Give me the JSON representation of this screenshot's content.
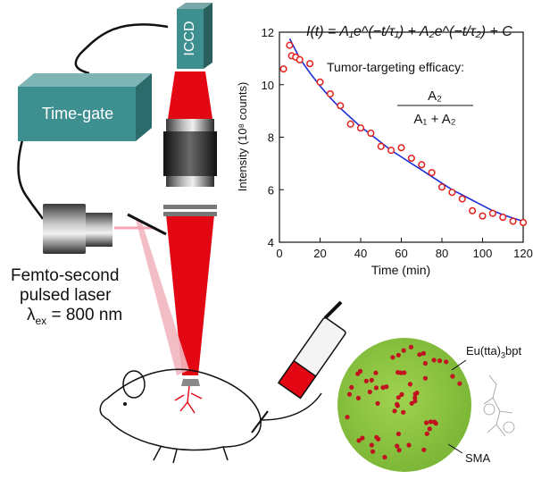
{
  "labels": {
    "iccd": "ICCD",
    "time_gate": "Time-gate",
    "laser_line1": "Femto-second",
    "laser_line2": "pulsed laser",
    "lambda_symbol": "λ",
    "lambda_sub": "ex",
    "lambda_value": " = 800 nm",
    "particle_label": "Eu(tta)",
    "particle_sub": "3",
    "particle_suffix": "bpt",
    "matrix_label": "SMA"
  },
  "colors": {
    "laser_red": "#e30613",
    "box_teal": "#3e8f8f",
    "box_teal_dark": "#2b6b6b",
    "fit_line": "#1f2fd6",
    "data_marker": "#e3201b",
    "sphere_green": "#8cc63f",
    "sphere_dot": "#c1121f"
  },
  "chart_data": {
    "type": "scatter",
    "xlabel": "Time (min)",
    "ylabel": "Intensity (10⁸ counts)",
    "xlim": [
      0,
      120
    ],
    "ylim": [
      4,
      12
    ],
    "xticks": [
      0,
      20,
      40,
      60,
      80,
      100,
      120
    ],
    "yticks": [
      4,
      6,
      8,
      10,
      12
    ],
    "equation": "I(t) = A₁e^(−t/τ₁) + A₂e^(−t/τ₂) + C",
    "annotation": "Tumor-targeting efficacy:",
    "fraction_numerator": "A₂",
    "fraction_denominator": "A₁ + A₂",
    "series": [
      {
        "kind": "data",
        "x": [
          2,
          5,
          6,
          8,
          10,
          15,
          20,
          25,
          30,
          35,
          40,
          45,
          50,
          55,
          60,
          65,
          70,
          75,
          80,
          85,
          90,
          95,
          100,
          105,
          110,
          115,
          120
        ],
        "y": [
          10.6,
          11.5,
          11.1,
          11.05,
          10.95,
          10.8,
          10.1,
          9.65,
          9.2,
          8.5,
          8.35,
          8.15,
          7.65,
          7.5,
          7.6,
          7.2,
          6.95,
          6.65,
          6.1,
          5.9,
          5.65,
          5.2,
          5.0,
          5.1,
          4.95,
          4.8,
          4.75
        ],
        "color": "#e3201b"
      },
      {
        "kind": "fit",
        "x": [
          5,
          10,
          15,
          20,
          25,
          30,
          35,
          40,
          45,
          50,
          55,
          60,
          65,
          70,
          75,
          80,
          85,
          90,
          95,
          100,
          105,
          110,
          115,
          120
        ],
        "y": [
          11.75,
          11.0,
          10.45,
          9.95,
          9.5,
          9.1,
          8.75,
          8.4,
          8.1,
          7.8,
          7.5,
          7.25,
          7.0,
          6.75,
          6.5,
          6.25,
          6.0,
          5.8,
          5.6,
          5.4,
          5.2,
          5.05,
          4.92,
          4.8
        ],
        "color": "#1f2fd6"
      }
    ]
  }
}
